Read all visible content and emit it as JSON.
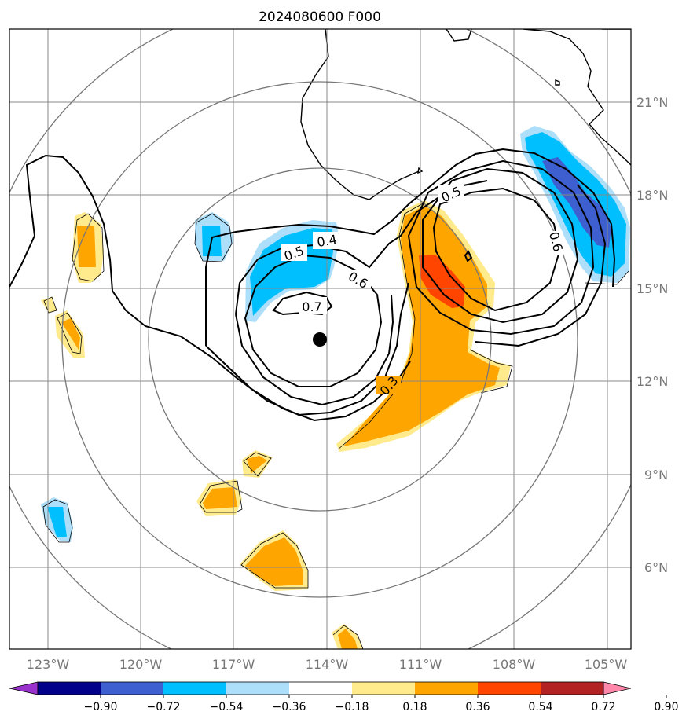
{
  "map": {
    "title": "2024080600 F000",
    "longitude_labels": [
      "123°W",
      "120°W",
      "117°W",
      "114°W",
      "111°W",
      "108°W",
      "105°W"
    ],
    "latitude_labels": [
      "21°N",
      "18°N",
      "15°N",
      "12°N",
      "9°N",
      "6°N"
    ],
    "contour_labels": [
      "0.4",
      "0.5",
      "0.6",
      "0.7",
      "0.5",
      "0.6",
      "0.3"
    ],
    "center_marker": "storm-center-dot",
    "colors": {
      "purple": "#9932CC",
      "navy": "#00008B",
      "royal_blue": "#3D5FD0",
      "deep_sky_blue": "#00BFFF",
      "light_sky_blue": "#ADDFFA",
      "white": "#FFFFFF",
      "light_yellow": "#FFEA8C",
      "orange": "#FFA500",
      "orange_red": "#FF4500",
      "firebrick": "#B22222",
      "pink": "#FF88AA"
    }
  },
  "colorbar": {
    "ticks": [
      "−0.90",
      "−0.72",
      "−0.54",
      "−0.36",
      "−0.18",
      "0.18",
      "0.36",
      "0.54",
      "0.72",
      "0.90"
    ],
    "colors": [
      "#00008B",
      "#3D5FD0",
      "#00BFFF",
      "#ADDFFA",
      "#FFFFFF",
      "#FFEA8C",
      "#FFA500",
      "#FF4500",
      "#B22222"
    ],
    "under_color": "#9932CC",
    "over_color": "#FF88AA"
  }
}
